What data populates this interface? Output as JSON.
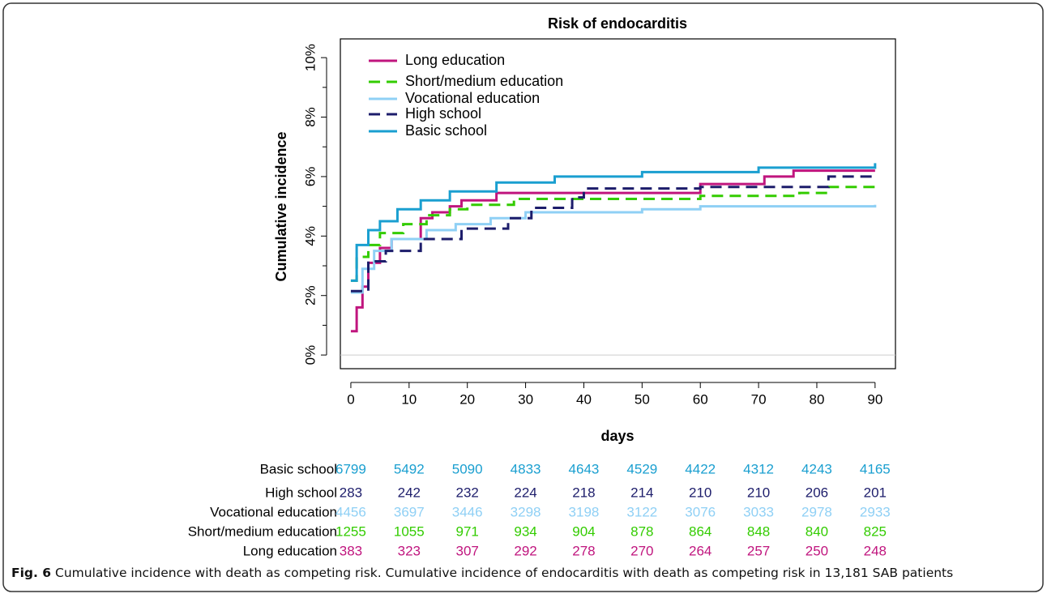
{
  "chart_data": {
    "type": "step",
    "title": "Risk of endocarditis",
    "x_label": "days",
    "y_label": "Cumulative incidence",
    "xlim": [
      -1.8,
      93.5
    ],
    "ylim": [
      -0.46,
      10.63
    ],
    "xticks": [
      0,
      10,
      20,
      30,
      40,
      50,
      60,
      70,
      80,
      90
    ],
    "yticks": [
      {
        "value": 0,
        "label": "0%"
      },
      {
        "value": 2,
        "label": "2%"
      },
      {
        "value": 4,
        "label": "4%"
      },
      {
        "value": 6,
        "label": "6%"
      },
      {
        "value": 8,
        "label": "8%"
      },
      {
        "value": 10,
        "label": "10%"
      }
    ],
    "yminorticks": [
      1,
      3,
      5,
      7,
      9
    ],
    "reference_line": 0,
    "legend": "top-left",
    "series": [
      {
        "name": "Long education",
        "color": "#c0157e",
        "dash": false,
        "x": [
          0,
          1,
          2,
          3,
          5,
          7,
          12,
          14,
          17,
          19,
          25,
          60,
          71,
          76,
          90
        ],
        "values": [
          0.8,
          1.6,
          2.3,
          3.1,
          3.6,
          3.9,
          4.6,
          4.8,
          5.0,
          5.2,
          5.45,
          5.75,
          6.0,
          6.2,
          6.2
        ]
      },
      {
        "name": "Short/medium education",
        "color": "#33cc00",
        "dash": true,
        "x": [
          0,
          1,
          3,
          5,
          9,
          13,
          17,
          20,
          28,
          60,
          77,
          82,
          90
        ],
        "values": [
          2.5,
          3.3,
          3.7,
          4.1,
          4.4,
          4.7,
          4.9,
          5.05,
          5.25,
          5.35,
          5.45,
          5.65,
          5.65
        ]
      },
      {
        "name": "Vocational education",
        "color": "#8fd0f5",
        "dash": false,
        "x": [
          0,
          2,
          4,
          7,
          13,
          18,
          24,
          30,
          50,
          60,
          90
        ],
        "values": [
          2.1,
          2.9,
          3.5,
          3.9,
          4.2,
          4.4,
          4.6,
          4.8,
          4.9,
          5.0,
          5.05
        ]
      },
      {
        "name": "High school",
        "color": "#1d1d6b",
        "dash": true,
        "x": [
          0,
          3,
          6,
          12,
          19,
          27,
          31,
          38,
          40,
          60,
          82,
          90
        ],
        "values": [
          2.15,
          3.15,
          3.5,
          3.9,
          4.25,
          4.6,
          4.95,
          5.3,
          5.6,
          5.65,
          6.0,
          6.0
        ]
      },
      {
        "name": "Basic school",
        "color": "#1a9fd0",
        "dash": false,
        "x": [
          0,
          1,
          3,
          5,
          8,
          12,
          17,
          25,
          35,
          50,
          70,
          90
        ],
        "values": [
          2.5,
          3.7,
          4.2,
          4.5,
          4.9,
          5.2,
          5.5,
          5.8,
          6.0,
          6.15,
          6.3,
          6.45
        ]
      }
    ],
    "risk_table": {
      "rows": [
        {
          "label": "Basic school",
          "color": "#1a9fd0",
          "values": [
            6799,
            5492,
            5090,
            4833,
            4643,
            4529,
            4422,
            4312,
            4243,
            4165
          ]
        },
        {
          "label": "High school",
          "color": "#1d1d6b",
          "values": [
            283,
            242,
            232,
            224,
            218,
            214,
            210,
            210,
            206,
            201
          ]
        },
        {
          "label": "Vocational education",
          "color": "#8fd0f5",
          "values": [
            4456,
            3697,
            3446,
            3298,
            3198,
            3122,
            3076,
            3033,
            2978,
            2933
          ]
        },
        {
          "label": "Short/medium education",
          "color": "#33cc00",
          "values": [
            1255,
            1055,
            971,
            934,
            904,
            878,
            864,
            848,
            840,
            825
          ]
        },
        {
          "label": "Long education",
          "color": "#c0157e",
          "values": [
            383,
            323,
            307,
            292,
            278,
            270,
            264,
            257,
            250,
            248
          ]
        }
      ]
    }
  },
  "caption": {
    "label": "Fig. 6",
    "text": "Cumulative incidence with death as competing risk. Cumulative incidence of endocarditis with death as competing risk in 13,181 SAB patients"
  }
}
